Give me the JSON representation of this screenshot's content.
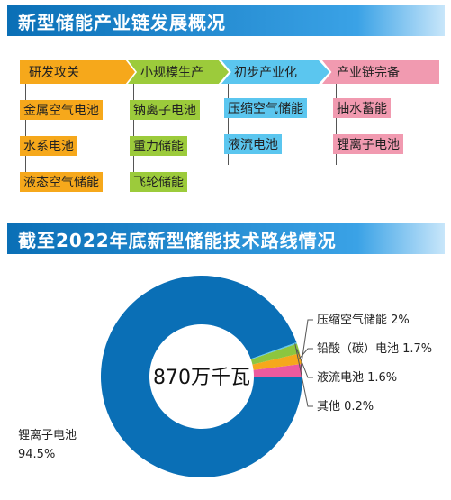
{
  "section1": {
    "title": "新型储能产业链发展概况",
    "stages": [
      {
        "label": "研发攻关",
        "items": [
          "金属空气电池",
          "水系电池",
          "液态空气储能"
        ]
      },
      {
        "label": "小规模生产",
        "items": [
          "钠离子电池",
          "重力储能",
          "飞轮储能"
        ]
      },
      {
        "label": "初步产业化",
        "items": [
          "压缩空气储能",
          "液流电池"
        ]
      },
      {
        "label": "产业链完备",
        "items": [
          "抽水蓄能",
          "锂离子电池"
        ]
      }
    ]
  },
  "section2": {
    "title": "截至2022年底新型储能技术路线情况"
  },
  "chart_data": {
    "type": "pie",
    "donut": true,
    "center_label": "870万千瓦",
    "slices": [
      {
        "name": "锂离子电池",
        "label": "锂离子电池",
        "value_label": "94.5%",
        "value": 94.5,
        "color": "#0a6fb6"
      },
      {
        "name": "压缩空气储能",
        "label": "压缩空气储能 2%",
        "value": 2.0,
        "color": "#ec5a9e"
      },
      {
        "name": "铅酸(碳)电池",
        "label": "铅酸（碳）电池 1.7%",
        "value": 1.7,
        "color": "#f6a81b"
      },
      {
        "name": "液流电池",
        "label": "液流电池 1.6%",
        "value": 1.6,
        "color": "#8cc63f"
      },
      {
        "name": "其他",
        "label": "其他 0.2%",
        "value": 0.2,
        "color": "#5bc6ef"
      }
    ]
  }
}
